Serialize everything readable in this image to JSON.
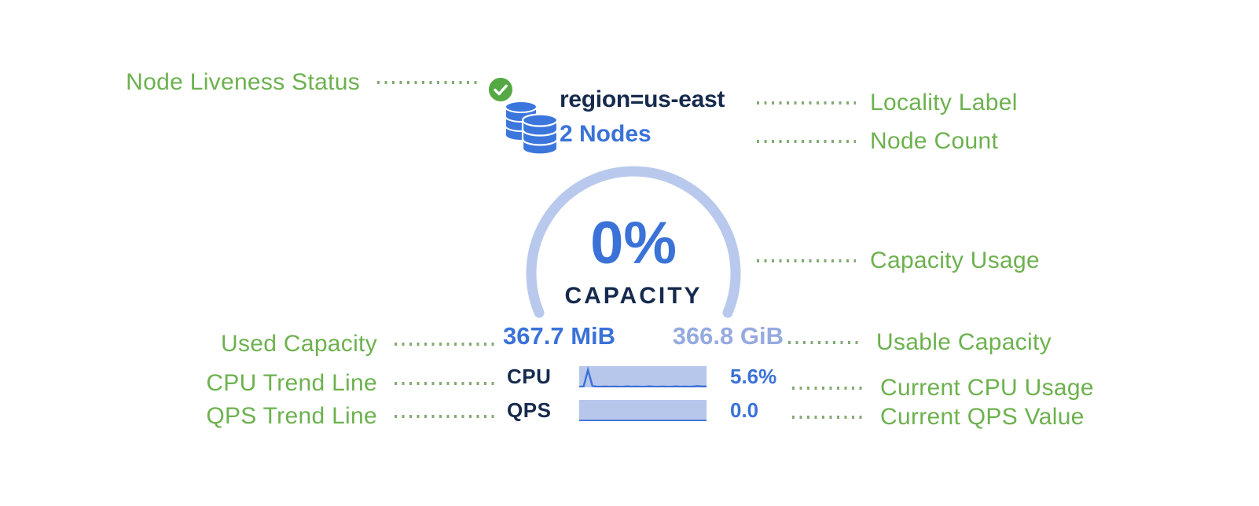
{
  "colors": {
    "annotation_green": "#6db14f",
    "leader_dot_green": "#85aa74",
    "status_ok_green": "#55a945",
    "primary_blue": "#3a72d8",
    "db_icon_blue": "#3b76dc",
    "navy_text": "#152a4d",
    "gauge_arc_light_blue": "#b9c9ed",
    "bar_background_blue": "#b6c7eb",
    "muted_blue": "#95aadf"
  },
  "widget": {
    "status_icon": "check-circle",
    "locality_label": "region=us-east",
    "node_count": "2 Nodes",
    "capacity_pct": "0%",
    "capacity_caption": "CAPACITY",
    "used_capacity": "367.7 MiB",
    "usable_capacity": "366.8 GiB",
    "cpu": {
      "label": "CPU",
      "value": "5.6%",
      "spark": [
        3,
        4,
        82,
        7,
        3,
        3,
        4,
        3,
        4,
        3,
        3,
        5,
        3,
        4,
        3,
        3,
        5,
        3,
        3,
        4,
        3,
        3,
        5,
        3,
        4,
        3,
        4,
        6,
        4,
        5
      ]
    },
    "qps": {
      "label": "QPS",
      "value": "0.0",
      "spark": [
        2,
        2,
        2,
        2,
        2,
        2,
        2,
        2,
        2,
        2,
        2,
        2,
        2,
        2,
        2,
        2,
        2,
        2,
        2,
        2,
        2,
        2,
        2,
        2,
        2,
        2,
        2,
        2,
        2,
        2
      ]
    }
  },
  "annotations": {
    "left": [
      {
        "label": "Node Liveness Status"
      },
      {
        "label": "Used Capacity"
      },
      {
        "label": "CPU Trend Line"
      },
      {
        "label": "QPS Trend Line"
      }
    ],
    "right": [
      {
        "label": "Locality Label"
      },
      {
        "label": "Node Count"
      },
      {
        "label": "Capacity Usage"
      },
      {
        "label": "Usable Capacity"
      },
      {
        "label": "Current CPU Usage"
      },
      {
        "label": "Current QPS Value"
      }
    ]
  }
}
